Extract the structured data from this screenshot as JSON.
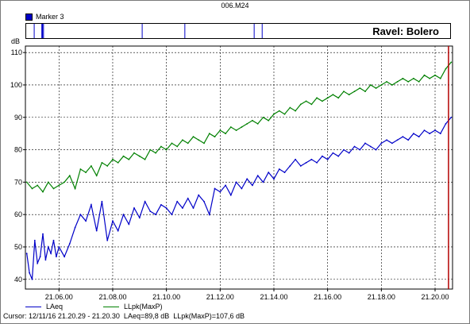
{
  "window_title": "006.M24",
  "marker": {
    "label": "Marker 3",
    "color": "#0000c8"
  },
  "chart_data": {
    "type": "line",
    "title": "Ravel: Bolero",
    "ylabel": "dB",
    "ylim": [
      37,
      112
    ],
    "y_ticks": [
      40,
      50,
      60,
      70,
      80,
      90,
      100,
      110
    ],
    "x_ticks": [
      "21.06.00",
      "21.08.00",
      "21.10.00",
      "21.12.00",
      "21.14.00",
      "21.16.00",
      "21.18.00",
      "21.20.00"
    ],
    "x_range_minutes": [
      4.75,
      20.65
    ],
    "x_tick_minutes": [
      6,
      8,
      10,
      12,
      14,
      16,
      18,
      20
    ],
    "grid": true,
    "cursor_minute": 20.5,
    "markers_minutes": [
      5.05,
      5.35,
      5.4,
      9.1,
      10.7,
      13.3,
      13.6
    ],
    "series": [
      {
        "name": "LAeq",
        "color": "#0000c8",
        "x": [
          4.8,
          4.9,
          5.0,
          5.1,
          5.2,
          5.3,
          5.4,
          5.5,
          5.6,
          5.7,
          5.8,
          5.9,
          6.0,
          6.2,
          6.4,
          6.6,
          6.8,
          7.0,
          7.2,
          7.4,
          7.6,
          7.8,
          8.0,
          8.2,
          8.4,
          8.6,
          8.8,
          9.0,
          9.2,
          9.4,
          9.6,
          9.8,
          10.0,
          10.2,
          10.4,
          10.6,
          10.8,
          11.0,
          11.2,
          11.4,
          11.6,
          11.8,
          12.0,
          12.2,
          12.4,
          12.6,
          12.8,
          13.0,
          13.2,
          13.4,
          13.6,
          13.8,
          14.0,
          14.2,
          14.4,
          14.6,
          14.8,
          15.0,
          15.2,
          15.4,
          15.6,
          15.8,
          16.0,
          16.2,
          16.4,
          16.6,
          16.8,
          17.0,
          17.2,
          17.4,
          17.6,
          17.8,
          18.0,
          18.2,
          18.4,
          18.6,
          18.8,
          19.0,
          19.2,
          19.4,
          19.6,
          19.8,
          20.0,
          20.2,
          20.4,
          20.6
        ],
        "values": [
          48,
          42,
          40,
          52,
          45,
          47,
          54,
          46,
          50,
          48,
          52,
          47,
          50,
          47,
          51,
          56,
          60,
          58,
          63,
          55,
          64,
          52,
          58,
          55,
          60,
          57,
          62,
          59,
          64,
          61,
          60,
          63,
          62,
          60,
          64,
          62,
          65,
          62,
          66,
          64,
          60,
          68,
          67,
          69,
          66,
          70,
          68,
          71,
          69,
          72,
          70,
          73,
          71,
          74,
          73,
          75,
          77,
          75,
          76,
          77,
          76,
          78,
          77,
          79,
          78,
          80,
          79,
          81,
          80,
          82,
          81,
          80,
          82,
          83,
          82,
          83,
          84,
          83,
          85,
          84,
          86,
          85,
          86,
          85,
          88,
          90
        ]
      },
      {
        "name": "LLpk(MaxP)",
        "color": "#008000",
        "x": [
          4.8,
          5.0,
          5.2,
          5.4,
          5.6,
          5.8,
          6.0,
          6.2,
          6.4,
          6.6,
          6.8,
          7.0,
          7.2,
          7.4,
          7.6,
          7.8,
          8.0,
          8.2,
          8.4,
          8.6,
          8.8,
          9.0,
          9.2,
          9.4,
          9.6,
          9.8,
          10.0,
          10.2,
          10.4,
          10.6,
          10.8,
          11.0,
          11.2,
          11.4,
          11.6,
          11.8,
          12.0,
          12.2,
          12.4,
          12.6,
          12.8,
          13.0,
          13.2,
          13.4,
          13.6,
          13.8,
          14.0,
          14.2,
          14.4,
          14.6,
          14.8,
          15.0,
          15.2,
          15.4,
          15.6,
          15.8,
          16.0,
          16.2,
          16.4,
          16.6,
          16.8,
          17.0,
          17.2,
          17.4,
          17.6,
          17.8,
          18.0,
          18.2,
          18.4,
          18.6,
          18.8,
          19.0,
          19.2,
          19.4,
          19.6,
          19.8,
          20.0,
          20.2,
          20.4,
          20.6
        ],
        "values": [
          70,
          68,
          69,
          67,
          70,
          68,
          69,
          70,
          72,
          68,
          74,
          73,
          75,
          72,
          76,
          75,
          77,
          76,
          78,
          77,
          79,
          78,
          77,
          80,
          79,
          81,
          80,
          82,
          81,
          83,
          82,
          84,
          83,
          82,
          85,
          84,
          86,
          85,
          87,
          86,
          87,
          88,
          89,
          88,
          90,
          89,
          91,
          92,
          91,
          93,
          92,
          94,
          95,
          94,
          96,
          95,
          96,
          97,
          96,
          98,
          97,
          98,
          99,
          98,
          100,
          99,
          100,
          101,
          100,
          101,
          102,
          101,
          102,
          101,
          103,
          102,
          103,
          102,
          105,
          107
        ]
      }
    ]
  },
  "cursor_readout": "Cursor: 12/11/16 21.20.29 - 21.20.30  LAeq=89,8 dB  LLpk(MaxP)=107,6 dB"
}
